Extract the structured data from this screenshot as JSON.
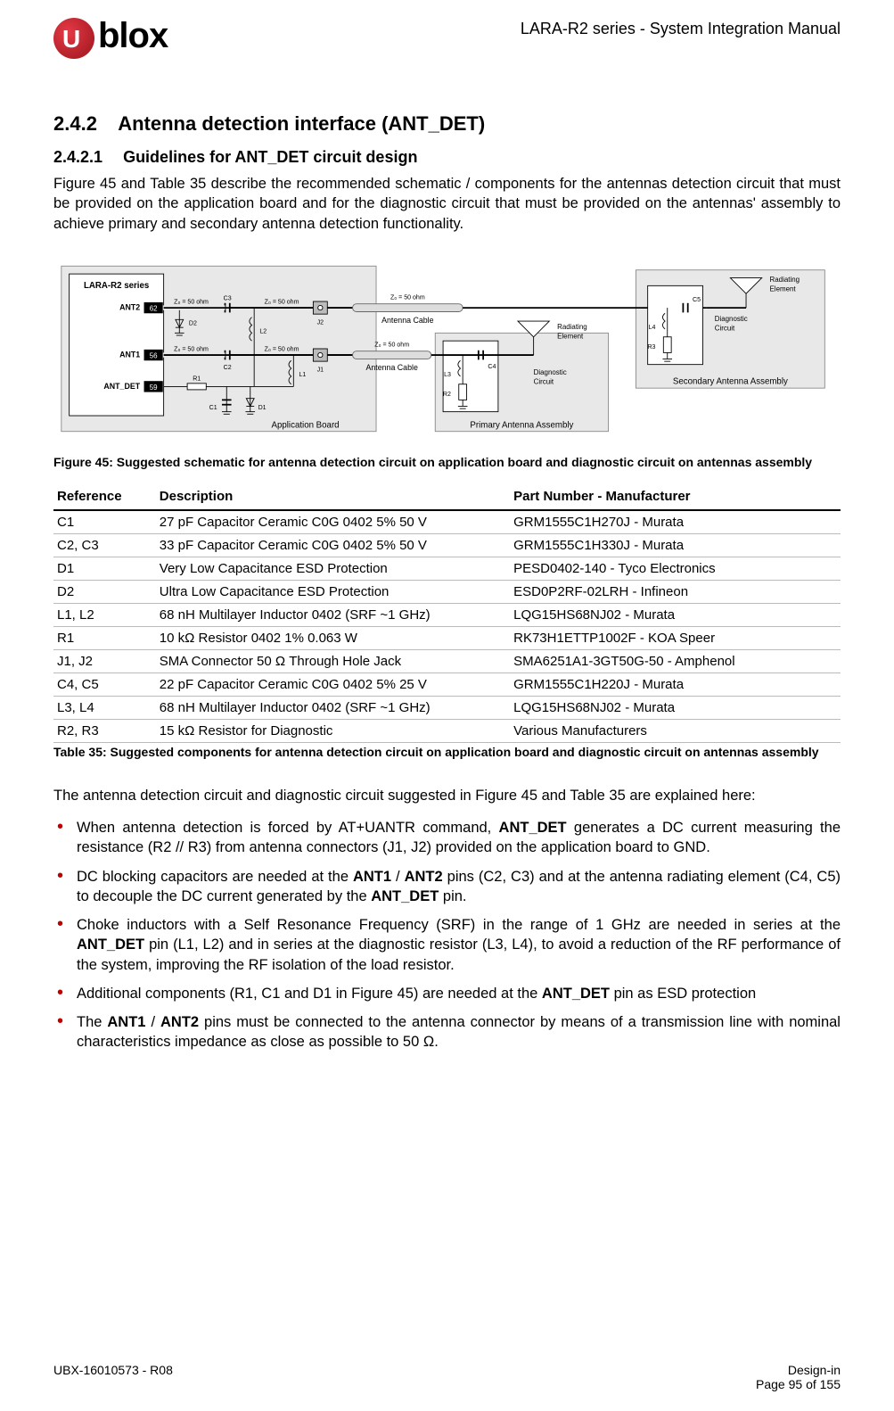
{
  "header": {
    "logo_text": "blox",
    "doc_title": "LARA-R2 series - System Integration Manual"
  },
  "section": {
    "num": "2.4.2",
    "title": "Antenna detection interface (ANT_DET)"
  },
  "subsection": {
    "num": "2.4.2.1",
    "title": "Guidelines for ANT_DET circuit design"
  },
  "intro_para": "Figure 45 and Table 35 describe the recommended schematic / components for the antennas detection circuit that must be provided on the application board and for the diagnostic circuit that must be provided on the antennas' assembly to achieve primary and secondary antenna detection functionality.",
  "figure": {
    "caption": "Figure 45: Suggested schematic for antenna detection circuit on application board and diagnostic circuit on antennas assembly",
    "module_label": "LARA-R2 series",
    "pins": {
      "ant2": {
        "name": "ANT2",
        "num": "62"
      },
      "ant1": {
        "name": "ANT1",
        "num": "56"
      },
      "ant_det": {
        "name": "ANT_DET",
        "num": "59"
      }
    },
    "z_label": "Z₀ = 50 ohm",
    "refs": {
      "C1": "C1",
      "C2": "C2",
      "C3": "C3",
      "C4": "C4",
      "C5": "C5",
      "D1": "D1",
      "D2": "D2",
      "L1": "L1",
      "L2": "L2",
      "L3": "L3",
      "L4": "L4",
      "R1": "R1",
      "R2": "R2",
      "R3": "R3",
      "J1": "J1",
      "J2": "J2"
    },
    "labels": {
      "ant_cable": "Antenna Cable",
      "app_board": "Application Board",
      "primary": "Primary Antenna Assembly",
      "secondary": "Secondary Antenna Assembly",
      "radiating": "Radiating\nElement",
      "diagnostic": "Diagnostic\nCircuit"
    },
    "colors": {
      "module_fill": "#ffffff",
      "module_stroke": "#000000",
      "pin_fill": "#000000",
      "pin_text": "#ffffff",
      "board_fill": "#e6e6e6",
      "assembly_fill": "#e6e6e6",
      "line": "#000000",
      "text": "#000000"
    }
  },
  "table": {
    "headers": [
      "Reference",
      "Description",
      "Part Number - Manufacturer"
    ],
    "rows": [
      [
        "C1",
        "27 pF Capacitor Ceramic C0G 0402 5% 50 V",
        "GRM1555C1H270J - Murata"
      ],
      [
        "C2, C3",
        "33 pF Capacitor Ceramic C0G 0402 5% 50 V",
        "GRM1555C1H330J - Murata"
      ],
      [
        "D1",
        "Very Low Capacitance ESD Protection",
        "PESD0402-140 - Tyco Electronics"
      ],
      [
        "D2",
        "Ultra Low Capacitance ESD Protection",
        "ESD0P2RF-02LRH - Infineon"
      ],
      [
        "L1, L2",
        "68 nH Multilayer Inductor 0402 (SRF ~1 GHz)",
        "LQG15HS68NJ02 - Murata"
      ],
      [
        "R1",
        "10 kΩ Resistor 0402 1% 0.063 W",
        "RK73H1ETTP1002F - KOA Speer"
      ],
      [
        "J1, J2",
        "SMA Connector 50 Ω Through Hole Jack",
        "SMA6251A1-3GT50G-50 - Amphenol"
      ],
      [
        "C4, C5",
        "22 pF Capacitor Ceramic C0G 0402 5% 25 V",
        "GRM1555C1H220J - Murata"
      ],
      [
        "L3, L4",
        "68 nH Multilayer Inductor 0402 (SRF ~1 GHz)",
        "LQG15HS68NJ02 - Murata"
      ],
      [
        "R2, R3",
        "15 kΩ Resistor for Diagnostic",
        "Various Manufacturers"
      ]
    ],
    "caption": "Table 35: Suggested components for antenna detection circuit on application board and diagnostic circuit on antennas assembly"
  },
  "explain_para": "The antenna detection circuit and diagnostic circuit suggested in Figure 45 and Table 35 are explained here:",
  "bullets": [
    "When antenna detection is forced by AT+UANTR command, <b>ANT_DET</b> generates a DC current measuring the resistance (R2 // R3) from antenna connectors (J1, J2) provided on the application board to GND.",
    "DC blocking capacitors are needed at the <b>ANT1</b> / <b>ANT2</b> pins (C2, C3) and at the antenna radiating element (C4, C5) to decouple the DC current generated by the <b>ANT_DET</b> pin.",
    "Choke inductors with a Self Resonance Frequency (SRF) in the range of 1 GHz are needed in series at the <b>ANT_DET</b> pin (L1, L2) and in series at the diagnostic resistor (L3, L4), to avoid a reduction of the RF performance of the system, improving the RF isolation of the load resistor.",
    "Additional components (R1, C1 and D1 in Figure 45) are needed at the <b>ANT_DET</b> pin as ESD protection",
    "The <b>ANT1</b> / <b>ANT2</b> pins must be connected to the antenna connector by means of a transmission line with nominal characteristics impedance as close as possible to 50 Ω."
  ],
  "footer": {
    "left": "UBX-16010573 - R08",
    "right_top": "Design-in",
    "right_bottom": "Page 95 of 155"
  }
}
